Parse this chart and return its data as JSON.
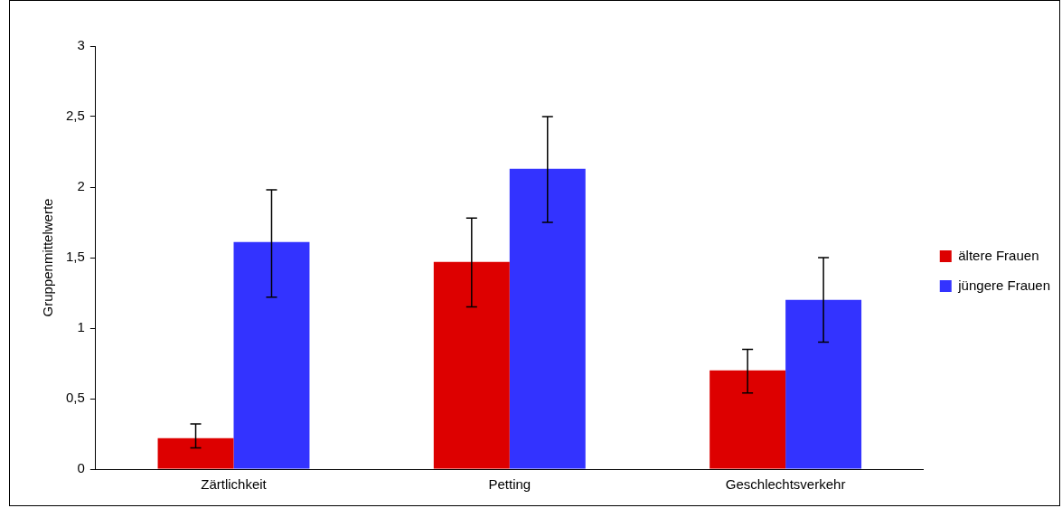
{
  "chart_data": {
    "type": "bar",
    "ylabel": "Gruppenmittelwerte",
    "categories": [
      "Zärtlichkeit",
      "Petting",
      "Geschlechtsverkehr"
    ],
    "series": [
      {
        "name": "ältere Frauen",
        "color": "#dd0000",
        "values": [
          0.22,
          1.47,
          0.7
        ],
        "errors": [
          [
            0.15,
            0.32
          ],
          [
            1.15,
            1.78
          ],
          [
            0.54,
            0.85
          ]
        ]
      },
      {
        "name": "jüngere Frauen",
        "color": "#3333ff",
        "values": [
          1.61,
          2.13,
          1.2
        ],
        "errors": [
          [
            1.22,
            1.98
          ],
          [
            1.75,
            2.5
          ],
          [
            0.9,
            1.5
          ]
        ]
      }
    ],
    "ylim": [
      0,
      3
    ],
    "yticks": [
      0,
      {
        "value": 0.5,
        "label": "0,5"
      },
      1,
      {
        "value": 1.5,
        "label": "1,5"
      },
      2,
      {
        "value": 2.5,
        "label": "2,5"
      },
      3
    ],
    "grid": false,
    "legend": "right"
  }
}
